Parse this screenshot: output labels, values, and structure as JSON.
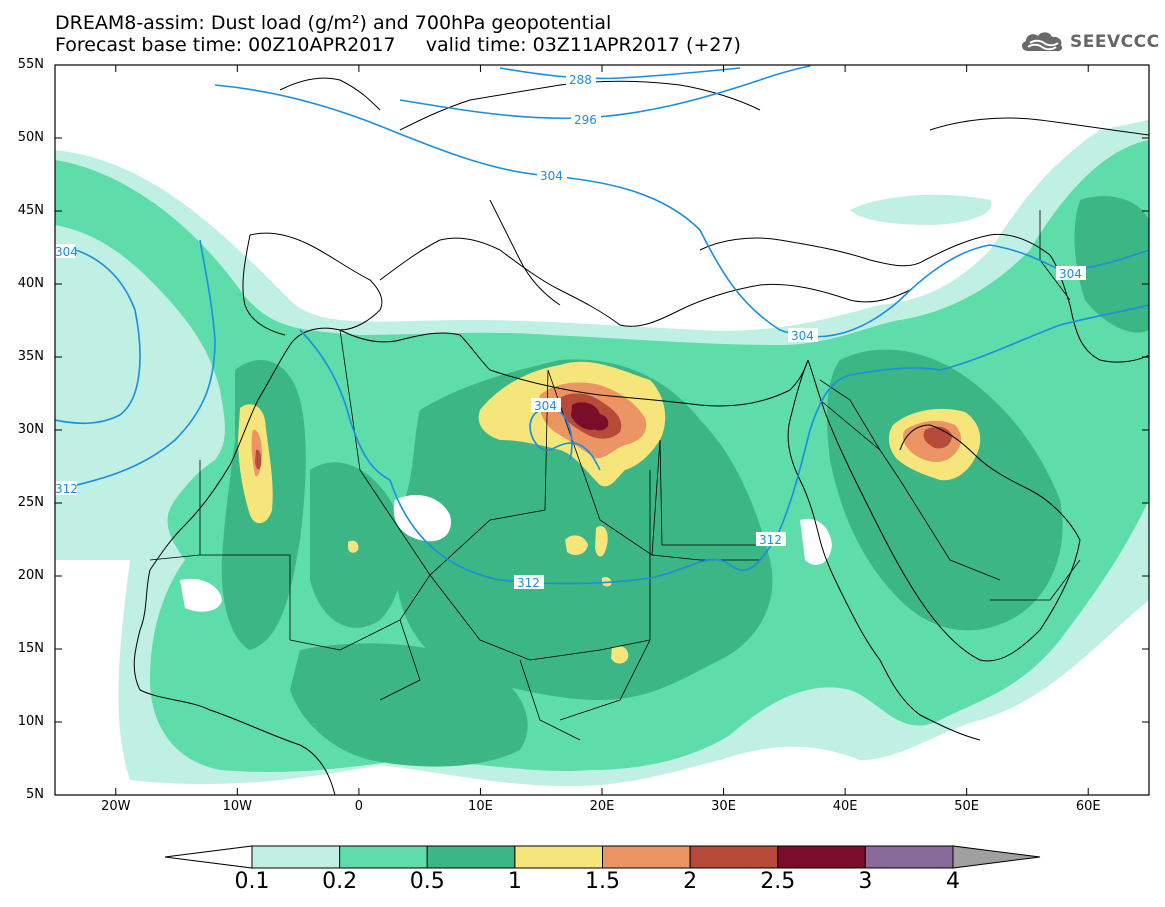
{
  "header": {
    "title_line1": "DREAM8-assim: Dust load (g/m²) and 700hPa geopotential",
    "title_line2": "Forecast base time: 00Z10APR2017     valid time: 03Z11APR2017 (+27)",
    "logo_text": "SEEVCCC",
    "logo_icon": "cloud-icon"
  },
  "axes": {
    "lat_labels": [
      {
        "text": "55N",
        "lat": 55
      },
      {
        "text": "50N",
        "lat": 50
      },
      {
        "text": "45N",
        "lat": 45
      },
      {
        "text": "40N",
        "lat": 40
      },
      {
        "text": "35N",
        "lat": 35
      },
      {
        "text": "30N",
        "lat": 30
      },
      {
        "text": "25N",
        "lat": 25
      },
      {
        "text": "20N",
        "lat": 20
      },
      {
        "text": "15N",
        "lat": 15
      },
      {
        "text": "10N",
        "lat": 10
      },
      {
        "text": "5N",
        "lat": 5
      }
    ],
    "lon_labels": [
      {
        "text": "20W",
        "lon": -20
      },
      {
        "text": "10W",
        "lon": -10
      },
      {
        "text": "0",
        "lon": 0
      },
      {
        "text": "10E",
        "lon": 10
      },
      {
        "text": "20E",
        "lon": 20
      },
      {
        "text": "30E",
        "lon": 30
      },
      {
        "text": "40E",
        "lon": 40
      },
      {
        "text": "50E",
        "lon": 50
      },
      {
        "text": "60E",
        "lon": 60
      }
    ],
    "lon_range": [
      -25,
      65
    ],
    "lat_range": [
      5,
      55
    ]
  },
  "contours": {
    "color": "#1a8fe0",
    "labels": [
      "288",
      "296",
      "304",
      "304",
      "304",
      "304",
      "304",
      "312",
      "312",
      "312"
    ]
  },
  "colorbar": {
    "colors": [
      "#bff0e3",
      "#5edcaa",
      "#3bb684",
      "#f5e57a",
      "#eb9464",
      "#b84a3a",
      "#7a0e2a",
      "#8a6a9a"
    ],
    "under_color": "#ffffff",
    "over_color": "#a0a0a0",
    "labels": [
      "0.1",
      "0.2",
      "0.5",
      "1",
      "1.5",
      "2",
      "2.5",
      "3",
      "4"
    ]
  }
}
